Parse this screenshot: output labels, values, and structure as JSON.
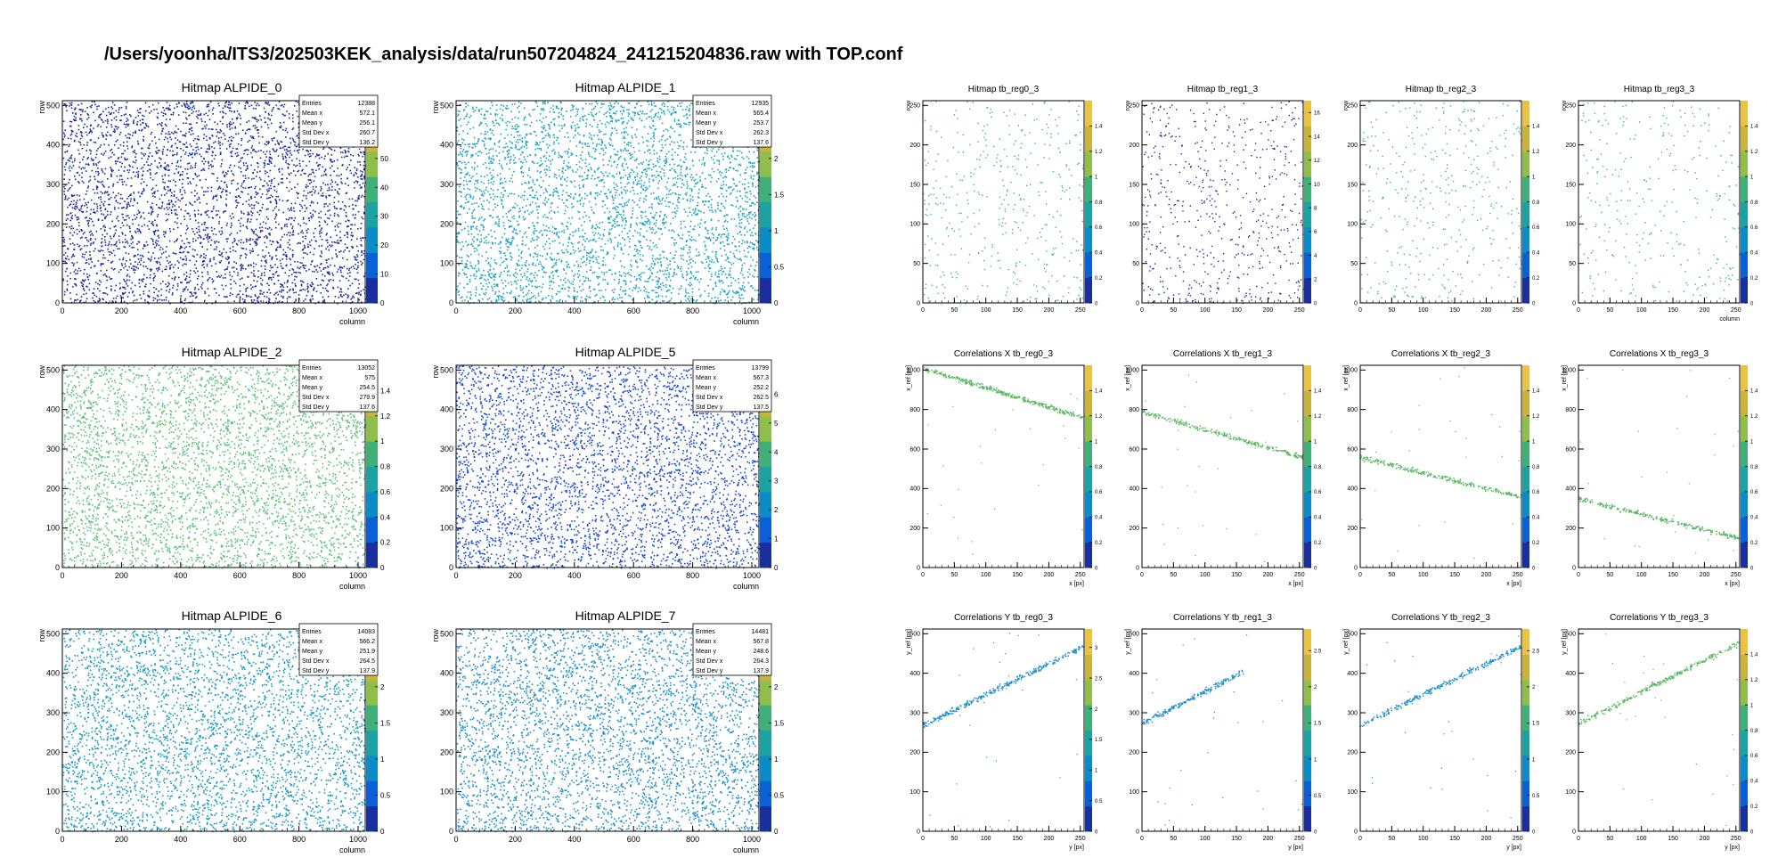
{
  "page": {
    "title": "/Users/yoonha/ITS3/202503KEK_analysis/data/run507204824_241215204836.raw with TOP.conf"
  },
  "colors": {
    "palette": [
      "#1a2f9e",
      "#0a60d6",
      "#0b8cc9",
      "#1ba3a3",
      "#3fb178",
      "#8fbf4a",
      "#c9b33a",
      "#e8c442"
    ],
    "hit_alpide_0": "#1a2aa0",
    "hit_alpide_1": "#19a3c8",
    "hit_alpide_2": "#5cc27a",
    "hit_alpide_5": "#1849d6",
    "hit_alpide_6": "#159ac6",
    "hit_alpide_7": "#1a8ed0",
    "hit_tb_teal": "#3fb49c",
    "hit_tb_green": "#58b860",
    "hit_tb_blue": "#1a8fd0"
  },
  "chart_data": [
    {
      "type": "heatmap",
      "title": "Hitmap ALPIDE_0",
      "xlabel": "column",
      "ylabel": "row",
      "xlim": [
        0,
        1024
      ],
      "ylim": [
        0,
        512
      ],
      "xticks": [
        0,
        200,
        400,
        600,
        800,
        1000
      ],
      "yticks": [
        0,
        100,
        200,
        300,
        400,
        500
      ],
      "zlim": [
        0,
        70
      ],
      "zticks": [
        0,
        10,
        20,
        30,
        40,
        50
      ],
      "color": "hit_alpide_0",
      "density": 0.05,
      "stats": [
        [
          "Entries",
          "12388"
        ],
        [
          "Mean x",
          "572.1"
        ],
        [
          "Mean y",
          "256.1"
        ],
        [
          "Std Dev x",
          "260.7"
        ],
        [
          "Std Dev y",
          "136.2"
        ]
      ]
    },
    {
      "type": "heatmap",
      "title": "Hitmap ALPIDE_1",
      "xlabel": "column",
      "ylabel": "row",
      "xlim": [
        0,
        1024
      ],
      "ylim": [
        0,
        512
      ],
      "xticks": [
        0,
        200,
        400,
        600,
        800,
        1000
      ],
      "yticks": [
        0,
        100,
        200,
        300,
        400,
        500
      ],
      "zlim": [
        0,
        2.8
      ],
      "zticks": [
        0,
        0.5,
        1,
        1.5,
        2
      ],
      "color": "hit_alpide_1",
      "density": 0.05,
      "stats": [
        [
          "Entries",
          "12935"
        ],
        [
          "Mean x",
          "565.4"
        ],
        [
          "Mean y",
          "253.7"
        ],
        [
          "Std Dev x",
          "262.3"
        ],
        [
          "Std Dev y",
          "137.6"
        ]
      ]
    },
    {
      "type": "heatmap",
      "title": "Hitmap ALPIDE_2",
      "xlabel": "column",
      "ylabel": "row",
      "xlim": [
        0,
        1024
      ],
      "ylim": [
        0,
        512
      ],
      "xticks": [
        0,
        200,
        400,
        600,
        800,
        1000
      ],
      "yticks": [
        0,
        100,
        200,
        300,
        400,
        500
      ],
      "zlim": [
        0,
        1.6
      ],
      "zticks": [
        0,
        0.2,
        0.4,
        0.6,
        0.8,
        1,
        1.2,
        1.4
      ],
      "color": "hit_alpide_2",
      "density": 0.05,
      "stats": [
        [
          "Entries",
          "13052"
        ],
        [
          "Mean x",
          "575"
        ],
        [
          "Mean y",
          "254.5"
        ],
        [
          "Std Dev x",
          "279.9"
        ],
        [
          "Std Dev y",
          "137.6"
        ]
      ]
    },
    {
      "type": "heatmap",
      "title": "Hitmap ALPIDE_5",
      "xlabel": "column",
      "ylabel": "row",
      "xlim": [
        0,
        1024
      ],
      "ylim": [
        0,
        512
      ],
      "xticks": [
        0,
        200,
        400,
        600,
        800,
        1000
      ],
      "yticks": [
        0,
        100,
        200,
        300,
        400,
        500
      ],
      "zlim": [
        0,
        7
      ],
      "zticks": [
        0,
        1,
        2,
        3,
        4,
        5,
        6
      ],
      "color": "hit_alpide_5",
      "density": 0.05,
      "stats": [
        [
          "Entries",
          "13799"
        ],
        [
          "Mean x",
          "567.3"
        ],
        [
          "Mean y",
          "252.2"
        ],
        [
          "Std Dev x",
          "262.5"
        ],
        [
          "Std Dev y",
          "137.5"
        ]
      ]
    },
    {
      "type": "heatmap",
      "title": "Hitmap ALPIDE_6",
      "xlabel": "column",
      "ylabel": "row",
      "xlim": [
        0,
        1024
      ],
      "ylim": [
        0,
        512
      ],
      "xticks": [
        0,
        200,
        400,
        600,
        800,
        1000
      ],
      "yticks": [
        0,
        100,
        200,
        300,
        400,
        500
      ],
      "zlim": [
        0,
        2.8
      ],
      "zticks": [
        0,
        0.5,
        1,
        1.5,
        2
      ],
      "color": "hit_alpide_6",
      "density": 0.05,
      "stats": [
        [
          "Entries",
          "14083"
        ],
        [
          "Mean x",
          "566.2"
        ],
        [
          "Mean y",
          "251.9"
        ],
        [
          "Std Dev x",
          "264.5"
        ],
        [
          "Std Dev y",
          "137.9"
        ]
      ]
    },
    {
      "type": "heatmap",
      "title": "Hitmap ALPIDE_7",
      "xlabel": "column",
      "ylabel": "row",
      "xlim": [
        0,
        1024
      ],
      "ylim": [
        0,
        512
      ],
      "xticks": [
        0,
        200,
        400,
        600,
        800,
        1000
      ],
      "yticks": [
        0,
        100,
        200,
        300,
        400,
        500
      ],
      "zlim": [
        0,
        2.8
      ],
      "zticks": [
        0,
        0.5,
        1,
        1.5,
        2
      ],
      "color": "hit_alpide_7",
      "density": 0.05,
      "stats": [
        [
          "Entries",
          "14481"
        ],
        [
          "Mean x",
          "567.8"
        ],
        [
          "Mean y",
          "248.6"
        ],
        [
          "Std Dev x",
          "264.3"
        ],
        [
          "Std Dev y",
          "137.9"
        ]
      ]
    },
    {
      "type": "heatmap",
      "title": "Hitmap tb_reg0_3",
      "xlabel": "",
      "ylabel": "row",
      "xlim": [
        0,
        256
      ],
      "ylim": [
        0,
        256
      ],
      "xticks": [
        0,
        50,
        100,
        150,
        200,
        250
      ],
      "yticks": [
        0,
        50,
        100,
        150,
        200,
        250
      ],
      "zlim": [
        0,
        1.6
      ],
      "zticks": [
        0,
        0.2,
        0.4,
        0.6,
        0.8,
        1,
        1.2,
        1.4
      ],
      "color": "hit_tb_teal",
      "density": 0.01,
      "stats": []
    },
    {
      "type": "heatmap",
      "title": "Hitmap tb_reg1_3",
      "xlabel": "",
      "ylabel": "row",
      "xlim": [
        0,
        256
      ],
      "ylim": [
        0,
        256
      ],
      "xticks": [
        0,
        50,
        100,
        150,
        200,
        250
      ],
      "yticks": [
        0,
        50,
        100,
        150,
        200,
        250
      ],
      "zlim": [
        0,
        17
      ],
      "zticks": [
        0,
        2,
        4,
        6,
        8,
        10,
        12,
        14,
        16
      ],
      "color": "hit_alpide_0",
      "density": 0.014,
      "stats": []
    },
    {
      "type": "heatmap",
      "title": "Hitmap tb_reg2_3",
      "xlabel": "",
      "ylabel": "row",
      "xlim": [
        0,
        256
      ],
      "ylim": [
        0,
        256
      ],
      "xticks": [
        0,
        50,
        100,
        150,
        200,
        250
      ],
      "yticks": [
        0,
        50,
        100,
        150,
        200,
        250
      ],
      "zlim": [
        0,
        1.6
      ],
      "zticks": [
        0,
        0.2,
        0.4,
        0.6,
        0.8,
        1,
        1.2,
        1.4
      ],
      "color": "hit_tb_teal",
      "density": 0.01,
      "stats": []
    },
    {
      "type": "heatmap",
      "title": "Hitmap tb_reg3_3",
      "xlabel": "column",
      "ylabel": "row",
      "xlim": [
        0,
        256
      ],
      "ylim": [
        0,
        256
      ],
      "xticks": [
        0,
        50,
        100,
        150,
        200,
        250
      ],
      "yticks": [
        0,
        50,
        100,
        150,
        200,
        250
      ],
      "zlim": [
        0,
        1.6
      ],
      "zticks": [
        0,
        0.2,
        0.4,
        0.6,
        0.8,
        1,
        1.2,
        1.4
      ],
      "color": "hit_tb_teal",
      "density": 0.008,
      "stats": []
    },
    {
      "type": "scatter",
      "title": "Correlations X tb_reg0_3",
      "xlabel": "x [px]",
      "ylabel": "x_ref [px]",
      "xlim": [
        0,
        256
      ],
      "ylim": [
        0,
        1024
      ],
      "xticks": [
        0,
        50,
        100,
        150,
        200,
        250
      ],
      "yticks": [
        0,
        200,
        400,
        600,
        800,
        1000
      ],
      "zlim": [
        0,
        1.6
      ],
      "zticks": [
        0,
        0.2,
        0.4,
        0.6,
        0.8,
        1,
        1.2,
        1.4
      ],
      "color": "hit_tb_green",
      "band": {
        "x0": 0,
        "y0": 1010,
        "x1": 256,
        "y1": 760,
        "n": 320,
        "spread": 12
      },
      "stats": []
    },
    {
      "type": "scatter",
      "title": "Correlations X tb_reg1_3",
      "xlabel": "x [px]",
      "ylabel": "x_ref [px]",
      "xlim": [
        0,
        256
      ],
      "ylim": [
        0,
        1024
      ],
      "xticks": [
        0,
        50,
        100,
        150,
        200,
        250
      ],
      "yticks": [
        0,
        200,
        400,
        600,
        800,
        1000
      ],
      "zlim": [
        0,
        1.6
      ],
      "zticks": [
        0,
        0.2,
        0.4,
        0.6,
        0.8,
        1,
        1.2,
        1.4
      ],
      "color": "hit_tb_green",
      "band": {
        "x0": 0,
        "y0": 790,
        "x1": 256,
        "y1": 560,
        "n": 240,
        "spread": 12
      },
      "stats": []
    },
    {
      "type": "scatter",
      "title": "Correlations X tb_reg2_3",
      "xlabel": "x [px]",
      "ylabel": "x_ref [px]",
      "xlim": [
        0,
        256
      ],
      "ylim": [
        0,
        1024
      ],
      "xticks": [
        0,
        50,
        100,
        150,
        200,
        250
      ],
      "yticks": [
        0,
        200,
        400,
        600,
        800,
        1000
      ],
      "zlim": [
        0,
        1.6
      ],
      "zticks": [
        0,
        0.2,
        0.4,
        0.6,
        0.8,
        1,
        1.2,
        1.4
      ],
      "color": "hit_tb_green",
      "band": {
        "x0": 0,
        "y0": 560,
        "x1": 256,
        "y1": 360,
        "n": 240,
        "spread": 12
      },
      "stats": []
    },
    {
      "type": "scatter",
      "title": "Correlations X tb_reg3_3",
      "xlabel": "x [px]",
      "ylabel": "x_ref [px]",
      "xlim": [
        0,
        256
      ],
      "ylim": [
        0,
        1024
      ],
      "xticks": [
        0,
        50,
        100,
        150,
        200,
        250
      ],
      "yticks": [
        0,
        200,
        400,
        600,
        800,
        1000
      ],
      "zlim": [
        0,
        1.6
      ],
      "zticks": [
        0,
        0.2,
        0.4,
        0.6,
        0.8,
        1,
        1.2,
        1.4
      ],
      "color": "hit_tb_green",
      "band": {
        "x0": 0,
        "y0": 350,
        "x1": 256,
        "y1": 150,
        "n": 240,
        "spread": 12
      },
      "stats": []
    },
    {
      "type": "scatter",
      "title": "Correlations Y tb_reg0_3",
      "xlabel": "y [px]",
      "ylabel": "y_ref [px]",
      "xlim": [
        0,
        256
      ],
      "ylim": [
        0,
        512
      ],
      "xticks": [
        0,
        50,
        100,
        150,
        200,
        250
      ],
      "yticks": [
        0,
        100,
        200,
        300,
        400,
        500
      ],
      "zlim": [
        0,
        3.3
      ],
      "zticks": [
        0,
        0.5,
        1,
        1.5,
        2,
        2.5,
        3
      ],
      "color": "hit_tb_blue",
      "band": {
        "x0": 0,
        "y0": 270,
        "x1": 256,
        "y1": 470,
        "n": 300,
        "spread": 7
      },
      "stats": []
    },
    {
      "type": "scatter",
      "title": "Correlations Y tb_reg1_3",
      "xlabel": "y [px]",
      "ylabel": "y_ref [px]",
      "xlim": [
        0,
        256
      ],
      "ylim": [
        0,
        512
      ],
      "xticks": [
        0,
        50,
        100,
        150,
        200,
        250
      ],
      "yticks": [
        0,
        100,
        200,
        300,
        400,
        500
      ],
      "zlim": [
        0,
        2.8
      ],
      "zticks": [
        0,
        0.5,
        1,
        1.5,
        2,
        2.5
      ],
      "color": "hit_tb_blue",
      "band": {
        "x0": 0,
        "y0": 275,
        "x1": 160,
        "y1": 405,
        "n": 200,
        "spread": 7
      },
      "stats": []
    },
    {
      "type": "scatter",
      "title": "Correlations Y tb_reg2_3",
      "xlabel": "y [px]",
      "ylabel": "y_ref [px]",
      "xlim": [
        0,
        256
      ],
      "ylim": [
        0,
        512
      ],
      "xticks": [
        0,
        50,
        100,
        150,
        200,
        250
      ],
      "yticks": [
        0,
        100,
        200,
        300,
        400,
        500
      ],
      "zlim": [
        0,
        2.8
      ],
      "zticks": [
        0,
        0.5,
        1,
        1.5,
        2,
        2.5
      ],
      "color": "hit_tb_blue",
      "band": {
        "x0": 0,
        "y0": 270,
        "x1": 256,
        "y1": 470,
        "n": 260,
        "spread": 7
      },
      "stats": []
    },
    {
      "type": "scatter",
      "title": "Correlations Y tb_reg3_3",
      "xlabel": "y [px]",
      "ylabel": "y_ref [px]",
      "xlim": [
        0,
        256
      ],
      "ylim": [
        0,
        512
      ],
      "xticks": [
        0,
        50,
        100,
        150,
        200,
        250
      ],
      "yticks": [
        0,
        100,
        200,
        300,
        400,
        500
      ],
      "zlim": [
        0,
        1.6
      ],
      "zticks": [
        0,
        0.2,
        0.4,
        0.6,
        0.8,
        1,
        1.2,
        1.4
      ],
      "color": "hit_tb_green",
      "band": {
        "x0": 0,
        "y0": 275,
        "x1": 256,
        "y1": 480,
        "n": 260,
        "spread": 7
      },
      "stats": []
    }
  ]
}
